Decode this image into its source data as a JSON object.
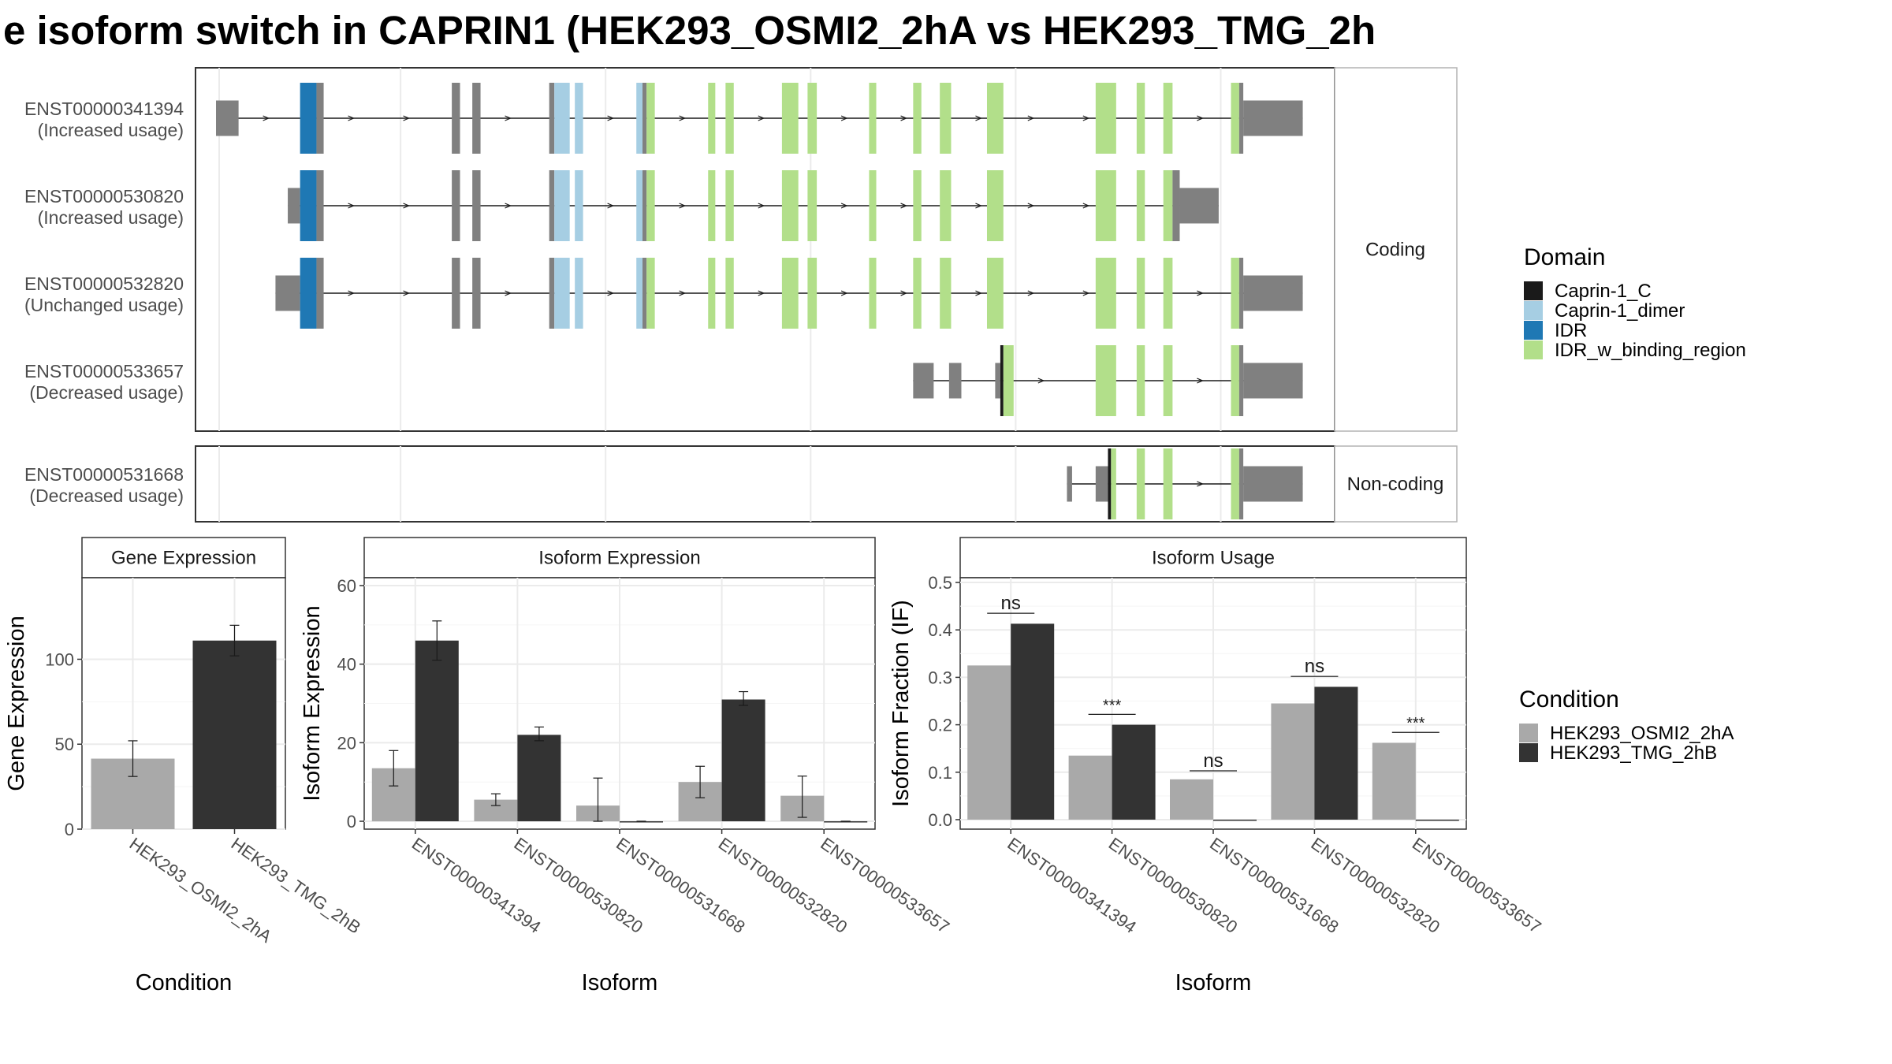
{
  "title": "e isoform switch in CAPRIN1 (HEK293_OSMI2_2hA vs HEK293_TMG_2h",
  "colors": {
    "utr": "#808080",
    "Caprin-1_C": "#1a1a1a",
    "Caprin-1_dimer": "#a6cee3",
    "IDR": "#1f78b4",
    "IDR_w_binding_region": "#b2df8a",
    "cond_a": "#a9a9a9",
    "cond_b": "#333333"
  },
  "structure": {
    "facets": [
      "Coding",
      "Non-coding"
    ],
    "domain_legend": {
      "title": "Domain",
      "items": [
        "Caprin-1_C",
        "Caprin-1_dimer",
        "IDR",
        "IDR_w_binding_region"
      ]
    },
    "isoforms": [
      {
        "id": "ENST00000341394",
        "usage": "(Increased usage)",
        "facet": "Coding",
        "blocks": [
          [
            0.02,
            0.042,
            "utr",
            0.5
          ],
          [
            0.102,
            0.118,
            "IDR",
            1
          ],
          [
            0.118,
            0.125,
            "utr",
            1
          ],
          [
            0.25,
            0.258,
            "utr",
            1
          ],
          [
            0.27,
            0.278,
            "utr",
            1
          ],
          [
            0.345,
            0.35,
            "utr",
            1
          ],
          [
            0.35,
            0.365,
            "Caprin-1_dimer",
            1
          ],
          [
            0.37,
            0.378,
            "Caprin-1_dimer",
            1
          ],
          [
            0.43,
            0.436,
            "Caprin-1_dimer",
            1
          ],
          [
            0.436,
            0.44,
            "utr",
            1
          ],
          [
            0.44,
            0.448,
            "IDR_w_binding_region",
            1
          ],
          [
            0.5,
            0.507,
            "IDR_w_binding_region",
            1
          ],
          [
            0.517,
            0.525,
            "IDR_w_binding_region",
            1
          ],
          [
            0.572,
            0.588,
            "IDR_w_binding_region",
            1
          ],
          [
            0.597,
            0.606,
            "IDR_w_binding_region",
            1
          ],
          [
            0.657,
            0.664,
            "IDR_w_binding_region",
            1
          ],
          [
            0.7,
            0.708,
            "IDR_w_binding_region",
            1
          ],
          [
            0.726,
            0.737,
            "IDR_w_binding_region",
            1
          ],
          [
            0.772,
            0.788,
            "IDR_w_binding_region",
            1
          ],
          [
            0.878,
            0.898,
            "IDR_w_binding_region",
            1
          ],
          [
            0.918,
            0.926,
            "IDR_w_binding_region",
            1
          ],
          [
            0.944,
            0.953,
            "IDR_w_binding_region",
            1
          ],
          [
            1.01,
            1.018,
            "IDR_w_binding_region",
            1
          ],
          [
            1.018,
            1.022,
            "utr",
            1
          ],
          [
            1.022,
            1.08,
            "utr",
            0.5
          ]
        ]
      },
      {
        "id": "ENST00000530820",
        "usage": "(Increased usage)",
        "facet": "Coding",
        "blocks": [
          [
            0.09,
            0.102,
            "utr",
            0.5
          ],
          [
            0.102,
            0.118,
            "IDR",
            1
          ],
          [
            0.118,
            0.125,
            "utr",
            1
          ],
          [
            0.25,
            0.258,
            "utr",
            1
          ],
          [
            0.27,
            0.278,
            "utr",
            1
          ],
          [
            0.345,
            0.35,
            "utr",
            1
          ],
          [
            0.35,
            0.365,
            "Caprin-1_dimer",
            1
          ],
          [
            0.37,
            0.378,
            "Caprin-1_dimer",
            1
          ],
          [
            0.43,
            0.436,
            "Caprin-1_dimer",
            1
          ],
          [
            0.436,
            0.44,
            "utr",
            1
          ],
          [
            0.44,
            0.448,
            "IDR_w_binding_region",
            1
          ],
          [
            0.5,
            0.507,
            "IDR_w_binding_region",
            1
          ],
          [
            0.517,
            0.525,
            "IDR_w_binding_region",
            1
          ],
          [
            0.572,
            0.588,
            "IDR_w_binding_region",
            1
          ],
          [
            0.597,
            0.606,
            "IDR_w_binding_region",
            1
          ],
          [
            0.657,
            0.664,
            "IDR_w_binding_region",
            1
          ],
          [
            0.7,
            0.708,
            "IDR_w_binding_region",
            1
          ],
          [
            0.726,
            0.737,
            "IDR_w_binding_region",
            1
          ],
          [
            0.772,
            0.788,
            "IDR_w_binding_region",
            1
          ],
          [
            0.878,
            0.898,
            "IDR_w_binding_region",
            1
          ],
          [
            0.918,
            0.926,
            "IDR_w_binding_region",
            1
          ],
          [
            0.944,
            0.953,
            "IDR_w_binding_region",
            1
          ],
          [
            0.953,
            0.96,
            "utr",
            1
          ],
          [
            0.96,
            0.998,
            "utr",
            0.5
          ]
        ]
      },
      {
        "id": "ENST00000532820",
        "usage": "(Unchanged usage)",
        "facet": "Coding",
        "blocks": [
          [
            0.078,
            0.102,
            "utr",
            0.5
          ],
          [
            0.102,
            0.118,
            "IDR",
            1
          ],
          [
            0.118,
            0.125,
            "utr",
            1
          ],
          [
            0.25,
            0.258,
            "utr",
            1
          ],
          [
            0.27,
            0.278,
            "utr",
            1
          ],
          [
            0.345,
            0.35,
            "utr",
            1
          ],
          [
            0.35,
            0.365,
            "Caprin-1_dimer",
            1
          ],
          [
            0.37,
            0.378,
            "Caprin-1_dimer",
            1
          ],
          [
            0.43,
            0.436,
            "Caprin-1_dimer",
            1
          ],
          [
            0.436,
            0.44,
            "utr",
            1
          ],
          [
            0.44,
            0.448,
            "IDR_w_binding_region",
            1
          ],
          [
            0.5,
            0.507,
            "IDR_w_binding_region",
            1
          ],
          [
            0.517,
            0.525,
            "IDR_w_binding_region",
            1
          ],
          [
            0.572,
            0.588,
            "IDR_w_binding_region",
            1
          ],
          [
            0.597,
            0.606,
            "IDR_w_binding_region",
            1
          ],
          [
            0.657,
            0.664,
            "IDR_w_binding_region",
            1
          ],
          [
            0.7,
            0.708,
            "IDR_w_binding_region",
            1
          ],
          [
            0.726,
            0.737,
            "IDR_w_binding_region",
            1
          ],
          [
            0.772,
            0.788,
            "IDR_w_binding_region",
            1
          ],
          [
            0.878,
            0.898,
            "IDR_w_binding_region",
            1
          ],
          [
            0.918,
            0.926,
            "IDR_w_binding_region",
            1
          ],
          [
            0.944,
            0.953,
            "IDR_w_binding_region",
            1
          ],
          [
            1.01,
            1.018,
            "IDR_w_binding_region",
            1
          ],
          [
            1.018,
            1.022,
            "utr",
            1
          ],
          [
            1.022,
            1.08,
            "utr",
            0.5
          ]
        ]
      },
      {
        "id": "ENST00000533657",
        "usage": "(Decreased usage)",
        "facet": "Coding",
        "blocks": [
          [
            0.7,
            0.72,
            "utr",
            0.5
          ],
          [
            0.735,
            0.747,
            "utr",
            0.5
          ],
          [
            0.78,
            0.785,
            "utr",
            0.5
          ],
          [
            0.785,
            0.788,
            "Caprin-1_C",
            1
          ],
          [
            0.788,
            0.798,
            "IDR_w_binding_region",
            1
          ],
          [
            0.878,
            0.898,
            "IDR_w_binding_region",
            1
          ],
          [
            0.918,
            0.926,
            "IDR_w_binding_region",
            1
          ],
          [
            0.944,
            0.953,
            "IDR_w_binding_region",
            1
          ],
          [
            1.01,
            1.018,
            "IDR_w_binding_region",
            1
          ],
          [
            1.018,
            1.022,
            "utr",
            1
          ],
          [
            1.022,
            1.08,
            "utr",
            0.5
          ]
        ]
      },
      {
        "id": "ENST00000531668",
        "usage": "(Decreased usage)",
        "facet": "Non-coding",
        "blocks": [
          [
            0.85,
            0.855,
            "utr",
            0.5
          ],
          [
            0.878,
            0.89,
            "utr",
            0.5
          ],
          [
            0.89,
            0.893,
            "Caprin-1_C",
            1
          ],
          [
            0.893,
            0.898,
            "IDR_w_binding_region",
            1
          ],
          [
            0.918,
            0.926,
            "IDR_w_binding_region",
            1
          ],
          [
            0.944,
            0.953,
            "IDR_w_binding_region",
            1
          ],
          [
            1.01,
            1.018,
            "IDR_w_binding_region",
            1
          ],
          [
            1.018,
            1.022,
            "utr",
            1
          ],
          [
            1.022,
            1.08,
            "utr",
            0.5
          ]
        ]
      }
    ]
  },
  "chart_data": [
    {
      "type": "bar",
      "title": "Gene Expression",
      "xlabel": "Condition",
      "ylabel": "Gene Expression",
      "ylim": [
        0,
        148
      ],
      "yticks": [
        0,
        50,
        100
      ],
      "categories": [
        "HEK293_OSMI2_2hA",
        "HEK293_TMG_2hB"
      ],
      "values": [
        41.5,
        111
      ],
      "errors": [
        [
          31,
          52
        ],
        [
          102,
          120
        ]
      ]
    },
    {
      "type": "bar",
      "title": "Isoform Expression",
      "xlabel": "Isoform",
      "ylabel": "Isoform Expression",
      "ylim": [
        -2,
        62
      ],
      "yticks": [
        0,
        20,
        40,
        60
      ],
      "categories": [
        "ENST00000341394",
        "ENST00000530820",
        "ENST00000531668",
        "ENST00000532820",
        "ENST00000533657"
      ],
      "series": [
        {
          "name": "HEK293_OSMI2_2hA",
          "values": [
            13.5,
            5.5,
            4,
            10,
            6.5
          ],
          "errors": [
            [
              9,
              18
            ],
            [
              4,
              7
            ],
            [
              0,
              11
            ],
            [
              6,
              14
            ],
            [
              1,
              11.5
            ]
          ]
        },
        {
          "name": "HEK293_TMG_2hB",
          "values": [
            46,
            22,
            0,
            31,
            0
          ],
          "errors": [
            [
              41,
              51
            ],
            [
              20.5,
              24
            ],
            [
              0,
              0
            ],
            [
              29.5,
              33
            ],
            [
              0,
              0
            ]
          ]
        }
      ]
    },
    {
      "type": "bar",
      "title": "Isoform Usage",
      "xlabel": "Isoform",
      "ylabel": "Isoform Fraction (IF)",
      "ylim": [
        -0.02,
        0.51
      ],
      "yticks": [
        0.0,
        0.1,
        0.2,
        0.3,
        0.4,
        0.5
      ],
      "categories": [
        "ENST00000341394",
        "ENST00000530820",
        "ENST00000531668",
        "ENST00000532820",
        "ENST00000533657"
      ],
      "series": [
        {
          "name": "HEK293_OSMI2_2hA",
          "values": [
            0.325,
            0.135,
            0.085,
            0.245,
            0.162
          ]
        },
        {
          "name": "HEK293_TMG_2hB",
          "values": [
            0.413,
            0.2,
            0,
            0.28,
            0
          ]
        }
      ],
      "significance": [
        {
          "label": "ns",
          "y": 0.435
        },
        {
          "label": "***",
          "y": 0.222
        },
        {
          "label": "ns",
          "y": 0.103
        },
        {
          "label": "ns",
          "y": 0.302
        },
        {
          "label": "***",
          "y": 0.184
        }
      ]
    }
  ],
  "condition_legend": {
    "title": "Condition",
    "items": [
      "HEK293_OSMI2_2hA",
      "HEK293_TMG_2hB"
    ]
  }
}
